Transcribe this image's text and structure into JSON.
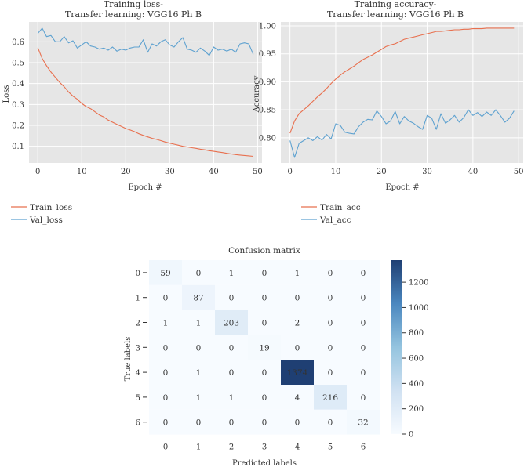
{
  "chart_data": [
    {
      "type": "line",
      "title": "Training loss-",
      "subtitle": "Transfer learning: VGG16 Ph B",
      "xlabel": "Epoch #",
      "ylabel": "Loss",
      "xlim": [
        -2,
        51
      ],
      "ylim": [
        0.02,
        0.695
      ],
      "xticks": [
        0,
        10,
        20,
        30,
        40,
        50
      ],
      "yticks": [
        0.1,
        0.2,
        0.3,
        0.4,
        0.5,
        0.6
      ],
      "ytick_labels": [
        "0.1",
        "0.2",
        "0.3",
        "0.4",
        "0.5",
        "0.6"
      ],
      "grid": true,
      "legend": "below",
      "series": [
        {
          "name": "Train_loss",
          "color": "#e8704f",
          "values": [
            0.572,
            0.52,
            0.485,
            0.455,
            0.43,
            0.405,
            0.385,
            0.36,
            0.34,
            0.325,
            0.305,
            0.29,
            0.28,
            0.265,
            0.25,
            0.24,
            0.225,
            0.215,
            0.205,
            0.195,
            0.185,
            0.178,
            0.17,
            0.16,
            0.152,
            0.145,
            0.138,
            0.133,
            0.127,
            0.12,
            0.115,
            0.11,
            0.105,
            0.1,
            0.097,
            0.093,
            0.09,
            0.086,
            0.083,
            0.079,
            0.076,
            0.073,
            0.07,
            0.066,
            0.063,
            0.06,
            0.058,
            0.056,
            0.054,
            0.052
          ]
        },
        {
          "name": "Val_loss",
          "color": "#5fa2d0",
          "values": [
            0.64,
            0.665,
            0.625,
            0.63,
            0.6,
            0.6,
            0.625,
            0.595,
            0.605,
            0.57,
            0.585,
            0.6,
            0.58,
            0.575,
            0.565,
            0.57,
            0.56,
            0.575,
            0.555,
            0.565,
            0.56,
            0.57,
            0.575,
            0.575,
            0.61,
            0.55,
            0.59,
            0.58,
            0.6,
            0.61,
            0.585,
            0.575,
            0.6,
            0.62,
            0.565,
            0.56,
            0.55,
            0.57,
            0.555,
            0.535,
            0.575,
            0.56,
            0.565,
            0.555,
            0.565,
            0.55,
            0.59,
            0.595,
            0.59,
            0.54
          ]
        }
      ]
    },
    {
      "type": "line",
      "title": "Training accuracy-",
      "subtitle": "Transfer learning: VGG16 Ph B",
      "xlabel": "Epoch #",
      "ylabel": "Accuracy",
      "xlim": [
        -2,
        51
      ],
      "ylim": [
        0.755,
        1.007
      ],
      "xticks": [
        0,
        10,
        20,
        30,
        40,
        50
      ],
      "yticks": [
        0.8,
        0.85,
        0.9,
        0.95,
        1.0
      ],
      "ytick_labels": [
        "0.80",
        "0.85",
        "0.90",
        "0.95",
        "1.00"
      ],
      "grid": true,
      "legend": "below",
      "series": [
        {
          "name": "Train_acc",
          "color": "#e8704f",
          "values": [
            0.808,
            0.83,
            0.843,
            0.85,
            0.857,
            0.865,
            0.873,
            0.88,
            0.888,
            0.897,
            0.905,
            0.912,
            0.918,
            0.923,
            0.928,
            0.934,
            0.94,
            0.944,
            0.948,
            0.953,
            0.958,
            0.963,
            0.966,
            0.968,
            0.972,
            0.976,
            0.978,
            0.98,
            0.982,
            0.984,
            0.986,
            0.988,
            0.99,
            0.99,
            0.991,
            0.992,
            0.993,
            0.993,
            0.994,
            0.994,
            0.995,
            0.995,
            0.995,
            0.996,
            0.996,
            0.996,
            0.996,
            0.996,
            0.996,
            0.996
          ]
        },
        {
          "name": "Val_acc",
          "color": "#5fa2d0",
          "values": [
            0.795,
            0.765,
            0.79,
            0.795,
            0.8,
            0.795,
            0.802,
            0.796,
            0.806,
            0.798,
            0.825,
            0.822,
            0.81,
            0.808,
            0.807,
            0.82,
            0.828,
            0.833,
            0.832,
            0.848,
            0.838,
            0.825,
            0.83,
            0.847,
            0.825,
            0.838,
            0.83,
            0.826,
            0.82,
            0.815,
            0.84,
            0.835,
            0.815,
            0.843,
            0.826,
            0.832,
            0.84,
            0.828,
            0.836,
            0.85,
            0.84,
            0.845,
            0.838,
            0.846,
            0.84,
            0.85,
            0.84,
            0.828,
            0.835,
            0.848
          ]
        }
      ]
    },
    {
      "type": "heatmap",
      "title": "Confusion matrix",
      "xlabel": "Predicted labels",
      "ylabel": "True labels",
      "x_labels": [
        "0",
        "1",
        "2",
        "3",
        "4",
        "5",
        "6"
      ],
      "y_labels": [
        "0",
        "1",
        "2",
        "3",
        "4",
        "5",
        "6"
      ],
      "matrix": [
        [
          59,
          0,
          1,
          0,
          1,
          0,
          0
        ],
        [
          0,
          87,
          0,
          0,
          0,
          0,
          0
        ],
        [
          1,
          1,
          203,
          0,
          2,
          0,
          0
        ],
        [
          0,
          0,
          0,
          19,
          0,
          0,
          0
        ],
        [
          0,
          1,
          0,
          0,
          1374,
          0,
          0
        ],
        [
          0,
          1,
          1,
          0,
          4,
          216,
          0
        ],
        [
          0,
          0,
          0,
          0,
          0,
          0,
          32
        ]
      ],
      "colorbar": {
        "min": 0,
        "max": 1374,
        "ticks": [
          0,
          200,
          400,
          600,
          800,
          1000,
          1200
        ],
        "colors": [
          "#f7fbff",
          "#1f3f73"
        ]
      }
    }
  ]
}
